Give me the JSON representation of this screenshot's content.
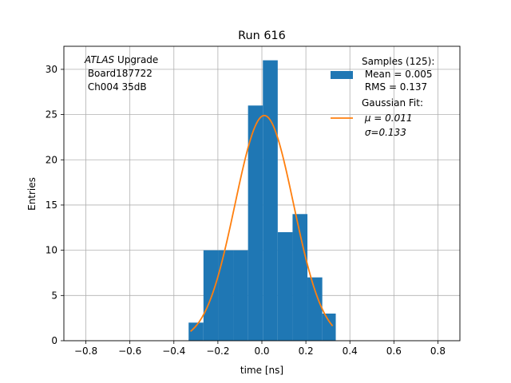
{
  "chart_data": {
    "type": "bar",
    "title": "Run 616",
    "xlabel": "time [ns]",
    "ylabel": "Entries",
    "xlim": [
      -0.9,
      0.9
    ],
    "ylim": [
      0,
      32.55
    ],
    "grid": true,
    "xticks": [
      -0.8,
      -0.6,
      -0.4,
      -0.2,
      0.0,
      0.2,
      0.4,
      0.6,
      0.8
    ],
    "xtick_labels": [
      "−0.8",
      "−0.6",
      "−0.4",
      "−0.2",
      "0.0",
      "0.2",
      "0.4",
      "0.6",
      "0.8"
    ],
    "yticks": [
      0,
      5,
      10,
      15,
      20,
      25,
      30
    ],
    "ytick_labels": [
      "0",
      "5",
      "10",
      "15",
      "20",
      "25",
      "30"
    ],
    "histogram": {
      "bin_edges": [
        -0.333,
        -0.2655,
        -0.198,
        -0.1305,
        -0.063,
        0.0045,
        0.072,
        0.1395,
        0.207,
        0.2745,
        0.3358
      ],
      "counts": [
        2,
        10,
        10,
        10,
        26,
        31,
        12,
        14,
        7,
        3
      ],
      "color": "#1f77b4"
    },
    "fit": {
      "type": "gaussian",
      "mu": 0.011,
      "sigma": 0.133,
      "amplitude": 24.9,
      "x_range": [
        -0.3245,
        0.3215
      ],
      "color": "#ff7f0e"
    },
    "annotation": {
      "lines": [
        {
          "italic": "ATLAS",
          "normal": " Upgrade"
        },
        {
          "italic": "",
          "normal": " Board187722"
        },
        {
          "italic": "",
          "normal": " Ch004 35dB"
        }
      ]
    },
    "legend": {
      "placement": "upper right",
      "entries": [
        {
          "kind": "patch",
          "lines": [
            "Samples (125):",
            " Mean = 0.005",
            " RMS = 0.137"
          ]
        },
        {
          "kind": "line",
          "lines": [
            "Gaussian Fit:",
            " μ = 0.011",
            " σ=0.133"
          ]
        }
      ]
    }
  }
}
